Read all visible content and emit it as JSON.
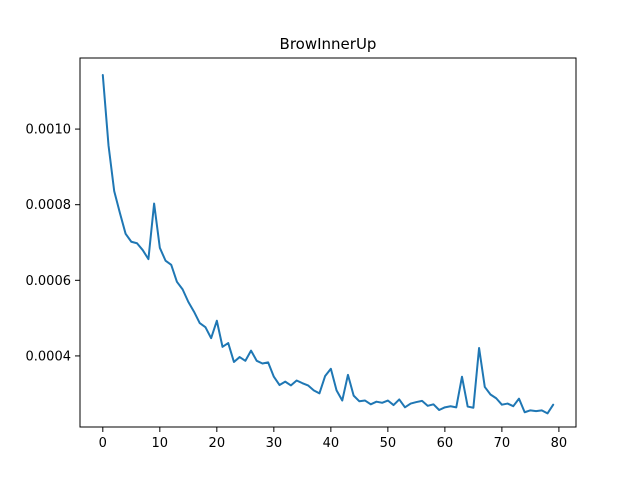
{
  "chart_data": {
    "type": "line",
    "title": "BrowInnerUp",
    "xlabel": "",
    "ylabel": "",
    "xlim": [
      -4,
      83
    ],
    "ylim": [
      0.000212,
      0.001188
    ],
    "grid": false,
    "legend": "none",
    "line_color": "#1f77b4",
    "x_ticks": [
      0,
      10,
      20,
      30,
      40,
      50,
      60,
      70,
      80
    ],
    "y_ticks": [
      0.0004,
      0.0006,
      0.0008,
      0.001
    ],
    "x_tick_labels": [
      "0",
      "10",
      "20",
      "30",
      "40",
      "50",
      "60",
      "70",
      "80"
    ],
    "y_tick_labels": [
      "0.0004",
      "0.0006",
      "0.0008",
      "0.0010"
    ],
    "series": [
      {
        "x": [
          0,
          1,
          2,
          3,
          4,
          5,
          6,
          7,
          8,
          9,
          10,
          11,
          12,
          13,
          14,
          15,
          16,
          17,
          18,
          19,
          20,
          21,
          22,
          23,
          24,
          25,
          26,
          27,
          28,
          29,
          30,
          31,
          32,
          33,
          34,
          35,
          36,
          37,
          38,
          39,
          40,
          41,
          42,
          43,
          44,
          45,
          46,
          47,
          48,
          49,
          50,
          51,
          52,
          53,
          54,
          55,
          56,
          57,
          58,
          59,
          60,
          61,
          62,
          63,
          64,
          65,
          66,
          67,
          68,
          69,
          70,
          71,
          72,
          73,
          74,
          75,
          76,
          77,
          78,
          79
        ],
        "values": [
          0.001143,
          0.000957,
          0.000836,
          0.000778,
          0.000723,
          0.000702,
          0.000698,
          0.00068,
          0.000656,
          0.000803,
          0.000686,
          0.000652,
          0.000641,
          0.000596,
          0.000576,
          0.000543,
          0.000517,
          0.000487,
          0.000476,
          0.000447,
          0.000493,
          0.000424,
          0.000434,
          0.000384,
          0.000397,
          0.000387,
          0.000414,
          0.000387,
          0.00038,
          0.000383,
          0.000345,
          0.000323,
          0.000332,
          0.000322,
          0.000335,
          0.000328,
          0.000322,
          0.000309,
          0.000301,
          0.000347,
          0.000366,
          0.000309,
          0.000282,
          0.00035,
          0.000295,
          0.00028,
          0.000282,
          0.000272,
          0.000279,
          0.000276,
          0.000282,
          0.00027,
          0.000285,
          0.000264,
          0.000274,
          0.000278,
          0.000281,
          0.000268,
          0.000272,
          0.000257,
          0.000264,
          0.000267,
          0.000264,
          0.000345,
          0.000266,
          0.000263,
          0.000421,
          0.000318,
          0.000298,
          0.000288,
          0.000271,
          0.000274,
          0.000267,
          0.000287,
          0.000251,
          0.000256,
          0.000254,
          0.000256,
          0.000248,
          0.000271
        ]
      }
    ]
  }
}
